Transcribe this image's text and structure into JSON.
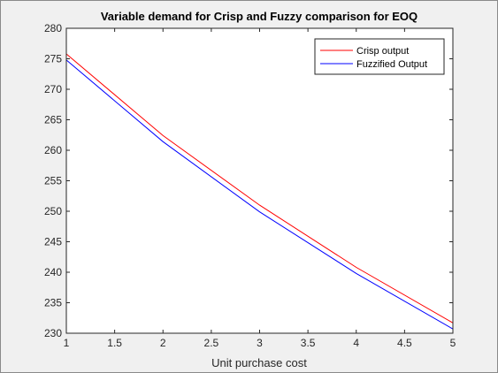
{
  "chart_data": {
    "type": "line",
    "title": "Variable demand for Crisp and Fuzzy comparison for EOQ",
    "xlabel": "Unit purchase cost",
    "ylabel": "",
    "xlim": [
      1,
      5
    ],
    "ylim": [
      230,
      280
    ],
    "xticks": [
      1,
      1.5,
      2,
      2.5,
      3,
      3.5,
      4,
      4.5,
      5
    ],
    "yticks": [
      230,
      235,
      240,
      245,
      250,
      255,
      260,
      265,
      270,
      275,
      280
    ],
    "x": [
      1,
      2,
      3,
      4,
      5
    ],
    "series": [
      {
        "name": "Crisp output",
        "color": "#ff0000",
        "values": [
          275.8,
          262.4,
          251.0,
          240.8,
          231.7
        ]
      },
      {
        "name": "Fuzzified Output",
        "color": "#0000ff",
        "values": [
          274.8,
          261.4,
          249.9,
          239.8,
          230.7
        ]
      }
    ],
    "legend": "top-right",
    "grid": false
  }
}
